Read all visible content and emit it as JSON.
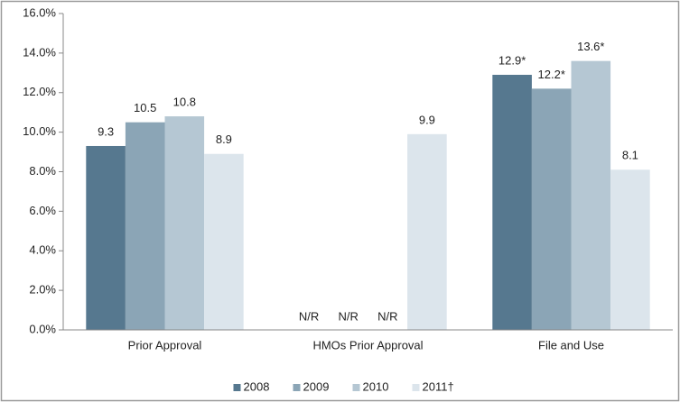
{
  "chart_data": {
    "type": "bar",
    "categories": [
      "Prior Approval",
      "HMOs Prior Approval",
      "File and Use"
    ],
    "series": [
      {
        "name": "2008",
        "color": "#56788f",
        "values": [
          9.3,
          null,
          12.9
        ],
        "value_labels": [
          "9.3",
          "N/R",
          "12.9*"
        ]
      },
      {
        "name": "2009",
        "color": "#8ba5b6",
        "values": [
          10.5,
          null,
          12.2
        ],
        "value_labels": [
          "10.5",
          "N/R",
          "12.2*"
        ]
      },
      {
        "name": "2010",
        "color": "#b5c7d3",
        "values": [
          10.8,
          null,
          13.6
        ],
        "value_labels": [
          "10.8",
          "N/R",
          "13.6*"
        ]
      },
      {
        "name": "2011†",
        "color": "#dce5ec",
        "values": [
          8.9,
          9.9,
          8.1
        ],
        "value_labels": [
          "8.9",
          "9.9",
          "8.1"
        ]
      }
    ],
    "ylim": [
      0,
      16
    ],
    "yticks": [
      {
        "value": 0,
        "label": "0.0%"
      },
      {
        "value": 2,
        "label": "2.0%"
      },
      {
        "value": 4,
        "label": "4.0%"
      },
      {
        "value": 6,
        "label": "6.0%"
      },
      {
        "value": 8,
        "label": "8.0%"
      },
      {
        "value": 10,
        "label": "10.0%"
      },
      {
        "value": 12,
        "label": "12.0%"
      },
      {
        "value": 14,
        "label": "14.0%"
      },
      {
        "value": 16,
        "label": "16.0%"
      }
    ],
    "grid": false,
    "legend": "bottom"
  }
}
